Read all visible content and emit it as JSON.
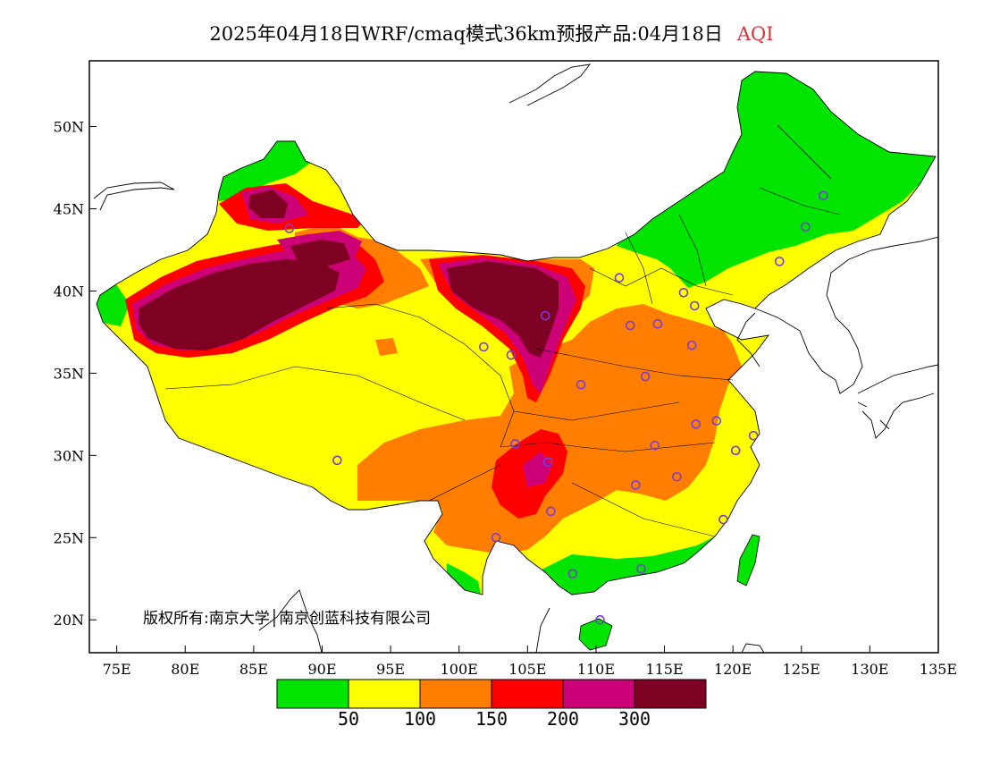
{
  "title": {
    "main": "2025年04月18日WRF/cmaq模式36km预报产品:04月18日",
    "variable": "AQI"
  },
  "copyright": "版权所有:南京大学│南京创蓝科技有限公司",
  "axes": {
    "lon_ticks": [
      "75E",
      "80E",
      "85E",
      "90E",
      "95E",
      "100E",
      "105E",
      "110E",
      "115E",
      "120E",
      "125E",
      "130E",
      "135E"
    ],
    "lat_ticks": [
      "20N",
      "25N",
      "30N",
      "35N",
      "40N",
      "45N",
      "50N"
    ],
    "lon_range": [
      73,
      135
    ],
    "lat_range": [
      18,
      54
    ]
  },
  "legend": {
    "colors": [
      "#00e400",
      "#ffff00",
      "#ff7e00",
      "#ff0000",
      "#cc0077",
      "#7e0023"
    ],
    "thresholds": [
      "50",
      "100",
      "150",
      "200",
      "300"
    ]
  },
  "colors": {
    "good": "#00e400",
    "moderate": "#ffff00",
    "sensitive": "#ff7e00",
    "unhealthy": "#ff0000",
    "very_unhealthy": "#cc0077",
    "hazardous": "#7e0023",
    "station_marker": "#7b3cd8"
  },
  "stations": [
    [
      87.6,
      43.8
    ],
    [
      91.1,
      29.7
    ],
    [
      101.8,
      36.6
    ],
    [
      103.8,
      36.1
    ],
    [
      106.3,
      38.5
    ],
    [
      108.9,
      34.3
    ],
    [
      104.1,
      30.7
    ],
    [
      106.5,
      29.6
    ],
    [
      106.7,
      26.6
    ],
    [
      102.7,
      25.0
    ],
    [
      108.3,
      22.8
    ],
    [
      110.3,
      20.0
    ],
    [
      113.3,
      23.1
    ],
    [
      119.3,
      26.1
    ],
    [
      112.9,
      28.2
    ],
    [
      115.9,
      28.7
    ],
    [
      114.3,
      30.6
    ],
    [
      117.3,
      31.9
    ],
    [
      118.8,
      32.1
    ],
    [
      120.2,
      30.3
    ],
    [
      121.5,
      31.2
    ],
    [
      113.6,
      34.8
    ],
    [
      117.0,
      36.7
    ],
    [
      112.5,
      37.9
    ],
    [
      114.5,
      38.0
    ],
    [
      117.2,
      39.1
    ],
    [
      116.4,
      39.9
    ],
    [
      111.7,
      40.8
    ],
    [
      123.4,
      41.8
    ],
    [
      125.3,
      43.9
    ],
    [
      126.6,
      45.8
    ]
  ]
}
